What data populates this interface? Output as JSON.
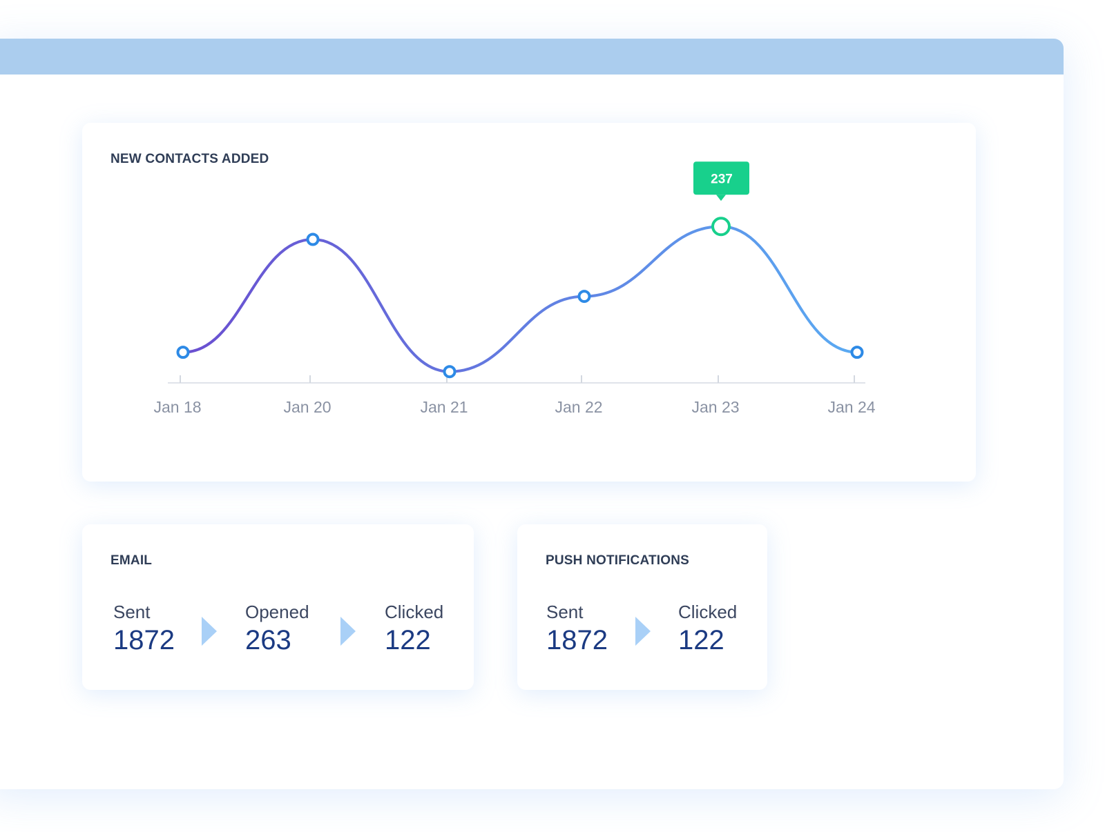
{
  "chart_card": {
    "title": "NEW CONTACTS ADDED",
    "tooltip": "237"
  },
  "chart_data": {
    "type": "line",
    "title": "NEW CONTACTS ADDED",
    "categories": [
      "Jan 18",
      "Jan 20",
      "Jan 21",
      "Jan 22",
      "Jan 23",
      "Jan 24"
    ],
    "values": [
      120,
      225,
      102,
      172,
      237,
      120
    ],
    "highlight": {
      "index": 4,
      "label": "237"
    },
    "ylim": [
      80,
      250
    ],
    "grid": false,
    "colors": {
      "line_start": "#6a4fd0",
      "line_end": "#5aaaf2",
      "point": "#2d8ae6",
      "highlight": "#18d08c"
    }
  },
  "email": {
    "title": "EMAIL",
    "stats": [
      {
        "label": "Sent",
        "value": "1872"
      },
      {
        "label": "Opened",
        "value": "263"
      },
      {
        "label": "Clicked",
        "value": "122"
      }
    ]
  },
  "push": {
    "title": "PUSH NOTIFICATIONS",
    "stats": [
      {
        "label": "Sent",
        "value": "1872"
      },
      {
        "label": "Clicked",
        "value": "122"
      }
    ]
  }
}
